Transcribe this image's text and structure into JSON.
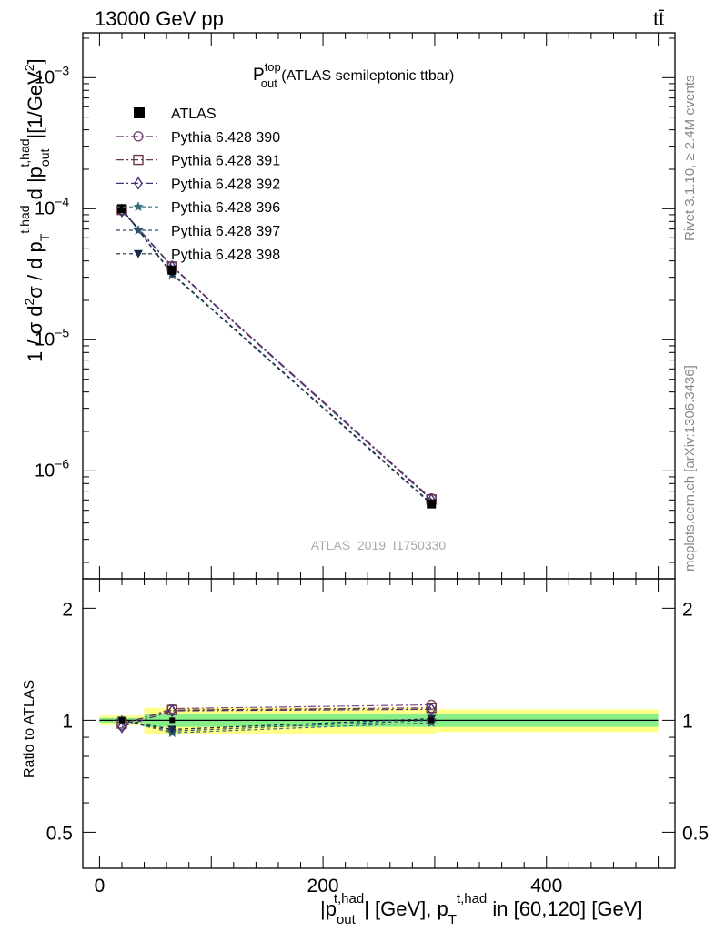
{
  "header": {
    "collision": "13000 GeV pp",
    "process": "tt̄"
  },
  "side": {
    "rivet": "Rivet 3.1.10, ≥ 2.4M events",
    "site": "mcplots.cern.ch [arXiv:1306.3436]"
  },
  "analysis_id": "ATLAS_2019_I1750330",
  "chart_data": [
    {
      "type": "line",
      "title": "P_out^top (ATLAS semileptonic ttbar)",
      "title_main": "P",
      "title_sup": "top",
      "title_sub": "out",
      "title_rest": " (ATLAS semileptonic ttbar)",
      "ylabel": "1 / σ d²σ / d p_T^{t,had} d |p_out^{t,had}| [1/GeV²]",
      "yscale": "log",
      "ylim": [
        1.5e-07,
        0.0022
      ],
      "xlim": [
        -15,
        515
      ],
      "y_ticks": [
        {
          "value": 1e-06,
          "base": "10",
          "exp": "−6"
        },
        {
          "value": 1e-05,
          "base": "10",
          "exp": "−5"
        },
        {
          "value": 0.0001,
          "base": "10",
          "exp": "−4"
        },
        {
          "value": 0.001,
          "base": "10",
          "exp": "−3"
        }
      ],
      "legend_position": "top-left",
      "data": {
        "name": "ATLAS",
        "x": [
          20,
          65,
          297
        ],
        "y": [
          0.0001,
          3.4e-05,
          5.6e-07
        ]
      },
      "series": [
        {
          "name": "Pythia 6.428 390",
          "marker": "circle-open",
          "color": "#7a4a7a",
          "dash": "8,3,2,3",
          "x": [
            20,
            65,
            297
          ],
          "y": [
            9.7e-05,
            3.65e-05,
            6.15e-07
          ]
        },
        {
          "name": "Pythia 6.428 391",
          "marker": "square-open",
          "color": "#6b3a4a",
          "dash": "8,3,2,3",
          "x": [
            20,
            65,
            297
          ],
          "y": [
            9.8e-05,
            3.62e-05,
            6.05e-07
          ]
        },
        {
          "name": "Pythia 6.428 392",
          "marker": "diamond-open",
          "color": "#4a2e7a",
          "dash": "8,3,2,3",
          "x": [
            20,
            65,
            297
          ],
          "y": [
            9.6e-05,
            3.6e-05,
            6e-07
          ]
        },
        {
          "name": "Pythia 6.428 396",
          "marker": "star",
          "color": "#3a6e7a",
          "dash": "4,3",
          "x": [
            20,
            65,
            297
          ],
          "y": [
            0.0001,
            3.15e-05,
            5.55e-07
          ]
        },
        {
          "name": "Pythia 6.428 397",
          "marker": "star",
          "color": "#2e4e6e",
          "dash": "4,3",
          "x": [
            20,
            65,
            297
          ],
          "y": [
            0.0001,
            3.18e-05,
            5.6e-07
          ]
        },
        {
          "name": "Pythia 6.428 398",
          "marker": "triangle-down",
          "color": "#1a2a4a",
          "dash": "4,3",
          "x": [
            20,
            65,
            297
          ],
          "y": [
            0.0001,
            3.2e-05,
            5.65e-07
          ]
        }
      ]
    },
    {
      "type": "line",
      "ylabel": "Ratio to ATLAS",
      "xlabel": "|p_out^{t,had}| [GeV], p_T^{t,had} in [60,120] [GeV]",
      "ylim": [
        0.4,
        2.4
      ],
      "xlim": [
        -15,
        515
      ],
      "x_ticks": [
        0,
        200,
        400
      ],
      "y_ticks": [
        0.5,
        1,
        2
      ],
      "bands": {
        "bins": [
          [
            0,
            40
          ],
          [
            40,
            300
          ],
          [
            300,
            500
          ]
        ],
        "green": [
          [
            0.985,
            1.015
          ],
          [
            0.96,
            1.04
          ],
          [
            0.96,
            1.04
          ]
        ],
        "yellow": [
          [
            0.97,
            1.03
          ],
          [
            0.92,
            1.08
          ],
          [
            0.93,
            1.07
          ]
        ]
      },
      "series": [
        {
          "name": "Pythia 6.428 390",
          "x": [
            20,
            65,
            297
          ],
          "y": [
            0.97,
            1.075,
            1.1
          ]
        },
        {
          "name": "Pythia 6.428 391",
          "x": [
            20,
            65,
            297
          ],
          "y": [
            0.98,
            1.065,
            1.08
          ]
        },
        {
          "name": "Pythia 6.428 392",
          "x": [
            20,
            65,
            297
          ],
          "y": [
            0.96,
            1.06,
            1.07
          ]
        },
        {
          "name": "Pythia 6.428 396",
          "x": [
            20,
            65,
            297
          ],
          "y": [
            1.0,
            0.925,
            0.985
          ]
        },
        {
          "name": "Pythia 6.428 397",
          "x": [
            20,
            65,
            297
          ],
          "y": [
            1.0,
            0.935,
            1.0
          ]
        },
        {
          "name": "Pythia 6.428 398",
          "x": [
            20,
            65,
            297
          ],
          "y": [
            1.0,
            0.945,
            1.01
          ]
        }
      ]
    }
  ]
}
